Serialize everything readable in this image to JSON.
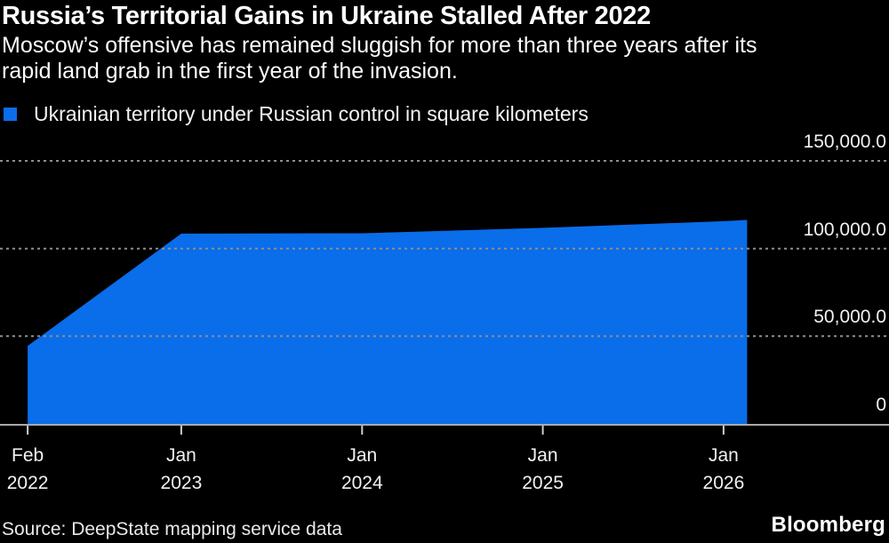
{
  "header": {
    "title": "Russia’s Territorial Gains in Ukraine Stalled After 2022",
    "subtitle_lines": [
      "Moscow’s offensive has remained sluggish for more than three years after its",
      "rapid land grab in the first year of the invasion."
    ]
  },
  "legend": {
    "label": "Ukrainian territory under Russian control in square kilometers"
  },
  "footer": {
    "source": "Source: DeepState mapping service data",
    "brand": "Bloomberg"
  },
  "colors": {
    "background": "#000000",
    "series_blue": "#0a6dea",
    "gridline": "#8f8f8f",
    "axis": "#aaaaaa",
    "tick": "#cccccc",
    "text": "#f2f2f2"
  },
  "chart_data": {
    "type": "area",
    "title": "Ukrainian territory under Russian control in square kilometers",
    "unit": "square kilometers",
    "xlabel": "",
    "ylabel": "",
    "x_domain_years": [
      2021.997,
      2026.915
    ],
    "ylim": [
      0,
      150000
    ],
    "grid": "dotted horizontal gridlines",
    "legend_position": "top-left",
    "points": [
      {
        "date": "Feb 2022",
        "t": 2022.15,
        "value": 44500
      },
      {
        "date": "Jan 2023",
        "t": 2023.0,
        "value": 108500
      },
      {
        "date": "Jan 2024",
        "t": 2024.0,
        "value": 108700
      },
      {
        "date": "Jan 2025",
        "t": 2025.0,
        "value": 111800
      },
      {
        "date": "Jan 2026",
        "t": 2026.0,
        "value": 115600
      },
      {
        "date": "Feb 2026",
        "t": 2026.13,
        "value": 116300
      }
    ],
    "x_ticks": [
      {
        "t": 2022.15,
        "line1": "Feb",
        "line2": "2022"
      },
      {
        "t": 2023.0,
        "line1": "Jan",
        "line2": "2023"
      },
      {
        "t": 2024.0,
        "line1": "Jan",
        "line2": "2024"
      },
      {
        "t": 2025.0,
        "line1": "Jan",
        "line2": "2025"
      },
      {
        "t": 2026.0,
        "line1": "Jan",
        "line2": "2026"
      }
    ],
    "y_ticks": [
      {
        "value": 150000,
        "label": "150,000.0"
      },
      {
        "value": 100000,
        "label": "100,000.0"
      },
      {
        "value": 50000,
        "label": "50,000.0"
      },
      {
        "value": 0,
        "label": "0"
      }
    ]
  }
}
